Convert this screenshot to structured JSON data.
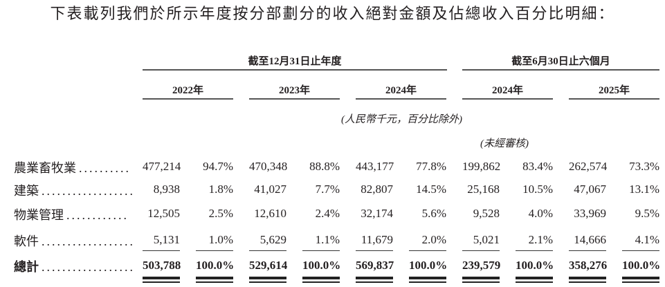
{
  "title": "下表載列我們於所示年度按分部劃分的收入絕對金額及佔總收入百分比明細：",
  "header": {
    "group_annual": "截至12月31日止年度",
    "group_interim": "截至6月30日止六個月",
    "years": [
      "2022年",
      "2023年",
      "2024年",
      "2024年",
      "2025年"
    ],
    "unit_note": "(人民幣千元，百分比除外)",
    "unaudited_note": "(未經審核)"
  },
  "rows": [
    {
      "label": "農業畜牧業",
      "dots": "..........",
      "values": [
        "477,214",
        "94.7%",
        "470,348",
        "88.8%",
        "443,177",
        "77.8%",
        "199,862",
        "83.4%",
        "262,574",
        "73.3%"
      ]
    },
    {
      "label": "建築",
      "dots": "..................",
      "values": [
        "8,938",
        "1.8%",
        "41,027",
        "7.7%",
        "82,807",
        "14.5%",
        "25,168",
        "10.5%",
        "47,067",
        "13.1%"
      ]
    },
    {
      "label": "物業管理",
      "dots": "............",
      "values": [
        "12,505",
        "2.5%",
        "12,610",
        "2.4%",
        "32,174",
        "5.6%",
        "9,528",
        "4.0%",
        "33,969",
        "9.5%"
      ]
    },
    {
      "label": "軟件",
      "dots": "..................",
      "values": [
        "5,131",
        "1.0%",
        "5,629",
        "1.1%",
        "11,679",
        "2.0%",
        "5,021",
        "2.1%",
        "14,666",
        "4.1%"
      ]
    }
  ],
  "total": {
    "label": "總計",
    "dots": "..................",
    "values": [
      "503,788",
      "100.0%",
      "529,614",
      "100.0%",
      "569,837",
      "100.0%",
      "239,579",
      "100.0%",
      "358,276",
      "100.0%"
    ]
  }
}
